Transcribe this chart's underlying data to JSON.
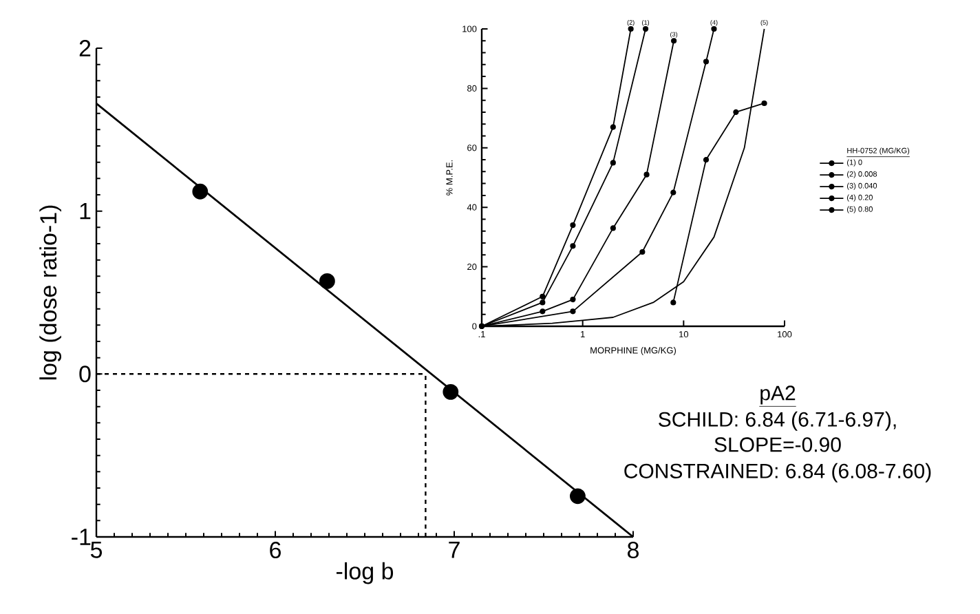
{
  "chart_data": [
    {
      "type": "scatter",
      "xlabel": "-log b",
      "ylabel": "log (dose ratio-1)",
      "xlim": [
        5,
        8
      ],
      "ylim": [
        -1,
        2
      ],
      "xticks": [
        5,
        6,
        7,
        8
      ],
      "yticks": [
        -1,
        0,
        1,
        2
      ],
      "marker": "circle",
      "legend": false,
      "grid": false,
      "series": [
        {
          "type": "scatter",
          "color": "#000000",
          "x": [
            5.58,
            6.29,
            6.98,
            7.69
          ],
          "values": [
            1.12,
            0.57,
            -0.11,
            -0.75
          ]
        },
        {
          "type": "line",
          "marker": "none",
          "color": "#000000",
          "x": [
            5,
            8
          ],
          "values": [
            1.66,
            -1.0
          ]
        }
      ],
      "ref_lines": [
        {
          "axis": "y",
          "value": 0,
          "line_style": "dashed"
        },
        {
          "axis": "x",
          "value": 6.84,
          "line_style": "dashed"
        }
      ],
      "annotations": [
        "pA2",
        "SCHILD:  6.84 (6.71-6.97),",
        "SLOPE=-0.90",
        "CONSTRAINED:  6.84 (6.08-7.60)"
      ]
    },
    {
      "type": "line",
      "xlabel": "MORPHINE (MG/KG)",
      "ylabel": "% M.P.E.",
      "log": "x",
      "xlim": [
        0.1,
        100
      ],
      "ylim": [
        0,
        100
      ],
      "xticks": [
        {
          "value": 0.1,
          "label": ".1"
        },
        1,
        10,
        100
      ],
      "yticks": [
        0,
        20,
        40,
        60,
        80,
        100
      ],
      "marker": "circle",
      "legend": "right",
      "legend_title": "HH-0752 (MG/KG)",
      "grid": false,
      "series": [
        {
          "name": "(1) 0",
          "color": "#000000",
          "x": [
            0.1,
            0.4,
            0.8,
            2,
            4.2
          ],
          "values": [
            0,
            8,
            27,
            55,
            100
          ]
        },
        {
          "name": "(2) 0.008",
          "color": "#000000",
          "x": [
            0.1,
            0.4,
            0.8,
            2,
            3.0
          ],
          "values": [
            0,
            10,
            34,
            67,
            100
          ]
        },
        {
          "name": "(3) 0.040",
          "color": "#000000",
          "x": [
            0.1,
            0.4,
            0.8,
            2,
            4.3,
            8
          ],
          "values": [
            0,
            5,
            9,
            33,
            51,
            96
          ]
        },
        {
          "name": "(4) 0.20",
          "color": "#000000",
          "x": [
            0.1,
            0.8,
            3.9,
            7.9,
            16.7,
            20
          ],
          "values": [
            0,
            5,
            25,
            45,
            89,
            100
          ]
        },
        {
          "name": "(5) 0.80",
          "color": "#000000",
          "x": [
            7.9,
            16.7,
            33,
            63
          ],
          "values": [
            8,
            56,
            72,
            75
          ]
        },
        {
          "marker": "none",
          "color": "#000000",
          "x": [
            0.1,
            0.5,
            1,
            2,
            5,
            10,
            20,
            40,
            63
          ],
          "values": [
            0,
            1,
            2,
            3,
            8,
            15,
            30,
            60,
            100
          ]
        }
      ],
      "annotations": [
        {
          "text": "(2)",
          "x": 3.0,
          "y": 100
        },
        {
          "text": "(1)",
          "x": 4.2,
          "y": 100
        },
        {
          "text": "(3)",
          "x": 8,
          "y": 96
        },
        {
          "text": "(4)",
          "x": 20,
          "y": 100
        },
        {
          "text": "(5)",
          "x": 63,
          "y": 100
        }
      ]
    }
  ]
}
